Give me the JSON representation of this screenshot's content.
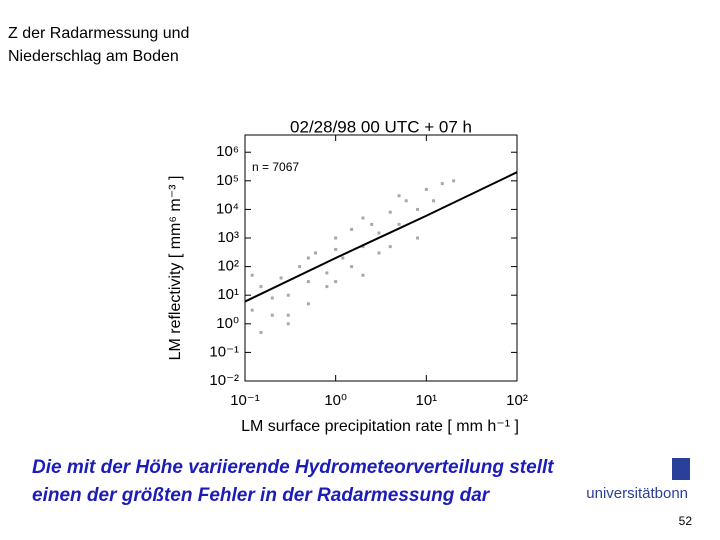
{
  "slide": {
    "title_lines": [
      "Z der Radarmessung und",
      "Niederschlag am Boden"
    ],
    "caption_lines": [
      "Die mit der Höhe variierende Hydrometeorverteilung stellt",
      "einen der größten Fehler in der Radarmessung dar"
    ],
    "logo": "universitätbonn",
    "page_number": "52"
  },
  "chart_data": {
    "type": "scatter",
    "title": "02/28/98   00 UTC + 07 h",
    "annotation": "n = 7067",
    "x_label": "LM surface precipitation rate [ mm h⁻¹ ]",
    "y_label": "LM reflectivity [ mm⁶ m⁻³ ]",
    "log_x": true,
    "log_y": true,
    "xlim": [
      0.1,
      100
    ],
    "ylim": [
      0.01,
      4000000
    ],
    "xticks": [
      {
        "value": 0.1,
        "label": "10⁻¹"
      },
      {
        "value": 1,
        "label": "10⁰"
      },
      {
        "value": 10,
        "label": "10¹"
      },
      {
        "value": 100,
        "label": "10²"
      }
    ],
    "yticks": [
      {
        "value": 0.01,
        "label": "10⁻²"
      },
      {
        "value": 0.1,
        "label": "10⁻¹"
      },
      {
        "value": 1,
        "label": "10⁰"
      },
      {
        "value": 10,
        "label": "10¹"
      },
      {
        "value": 100,
        "label": "10²"
      },
      {
        "value": 1000,
        "label": "10³"
      },
      {
        "value": 10000,
        "label": "10⁴"
      },
      {
        "value": 100000,
        "label": "10⁵"
      },
      {
        "value": 1000000,
        "label": "10⁶"
      }
    ],
    "series": [
      {
        "kind": "scatter",
        "color": "#a8a8a8",
        "x": [
          0.12,
          0.15,
          0.2,
          0.25,
          0.3,
          0.4,
          0.5,
          0.6,
          0.8,
          1,
          1.2,
          1.5,
          2,
          2.5,
          3,
          4,
          5,
          6,
          8,
          10,
          12,
          15,
          20,
          0.15,
          0.2,
          0.3,
          0.5,
          0.8,
          1,
          1.5,
          2,
          3,
          5,
          0.12,
          0.3,
          0.5,
          1,
          2,
          4,
          8
        ],
        "values": [
          3,
          20,
          2,
          40,
          10,
          100,
          30,
          300,
          60,
          400,
          200,
          2000,
          500,
          3000,
          1500,
          8000,
          3000,
          20000,
          10000,
          50000,
          20000,
          80000,
          100000,
          0.5,
          8,
          1,
          200,
          20,
          1000,
          100,
          5000,
          300,
          30000,
          50,
          2,
          5,
          30,
          50,
          500,
          1000
        ]
      },
      {
        "kind": "line",
        "color": "#000000",
        "x": [
          0.1,
          1,
          10,
          100
        ],
        "values": [
          6,
          200,
          6000,
          200000
        ]
      }
    ]
  }
}
